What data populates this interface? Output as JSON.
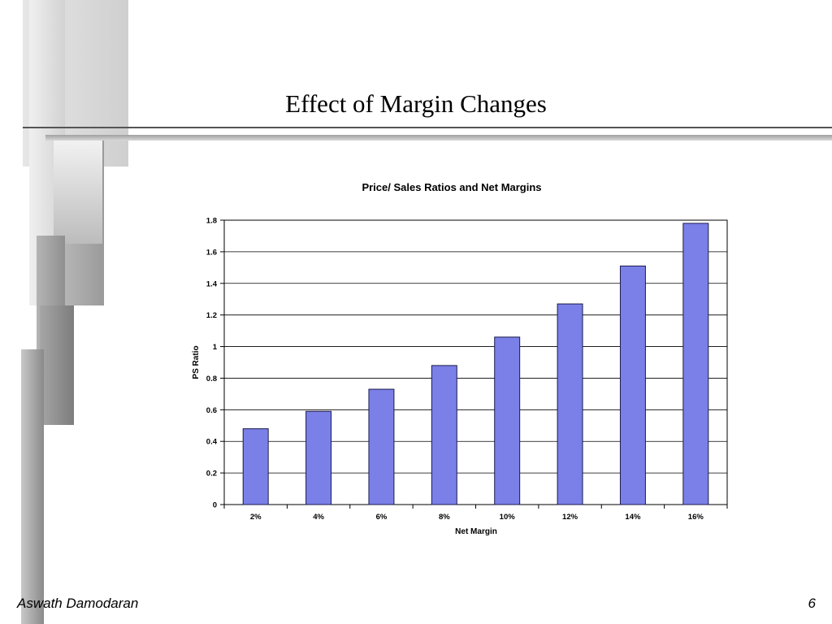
{
  "slide": {
    "title": "Effect of Margin Changes",
    "footer_author": "Aswath Damodaran",
    "page_number": "6"
  },
  "colors": {
    "bar_fill": "#7b80e8",
    "bar_stroke": "#1a1a4a",
    "gridline": "#000000"
  },
  "chart_data": {
    "type": "bar",
    "title": "Price/ Sales Ratios and Net Margins",
    "xlabel": "Net Margin",
    "ylabel": "PS Ratio",
    "categories": [
      "2%",
      "4%",
      "6%",
      "8%",
      "10%",
      "12%",
      "14%",
      "16%"
    ],
    "values": [
      0.48,
      0.59,
      0.73,
      0.88,
      1.06,
      1.27,
      1.51,
      1.78
    ],
    "ylim": [
      0,
      1.8
    ],
    "yticks": [
      "0",
      "0.2",
      "0.4",
      "0.6",
      "0.8",
      "1",
      "1.2",
      "1.4",
      "1.6",
      "1.8"
    ],
    "grid": true,
    "legend": "none"
  }
}
